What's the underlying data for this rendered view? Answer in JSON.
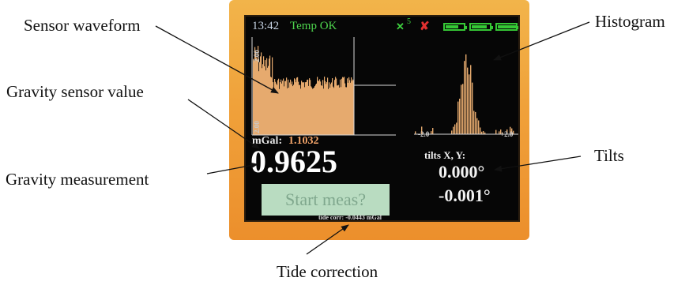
{
  "annotations": {
    "sensor_waveform": "Sensor waveform",
    "gravity_sensor_value": "Gravity sensor value",
    "gravity_measurement": "Gravity measurement",
    "histogram": "Histogram",
    "tilts": "Tilts",
    "tide_correction": "Tide correction"
  },
  "status_bar": {
    "time": "13:42",
    "temp_status": "Temp OK",
    "satellite_icon": "satellite-icon",
    "satellite_count": "5",
    "error_icon": "x-mark-icon",
    "battery_icon": "battery-icon",
    "battery_levels": [
      0.65,
      0.75,
      1.0
    ],
    "colors": {
      "ok": "#4ed64e",
      "error": "#e03030",
      "time": "#c9d6e6"
    }
  },
  "waveform": {
    "scale_top": "2.00",
    "scale_bottom": "2.00",
    "fill_color": "#e6aa6e"
  },
  "histogram": {
    "tick_left": "-2.0",
    "tick_right": "+2.0",
    "bar_color": "#e6aa6e"
  },
  "readings": {
    "mgal_label": "mGal:",
    "mgal_value": "1.1032",
    "gravity": "0.9625",
    "tilts_label": "tilts X, Y:",
    "tilt_x": "0.000°",
    "tilt_y": "-0.001°",
    "tide_corr": "tide corr: -0.0443 mGal"
  },
  "actions": {
    "start_label": "Start meas?",
    "button_color": "#b9dcc1"
  }
}
